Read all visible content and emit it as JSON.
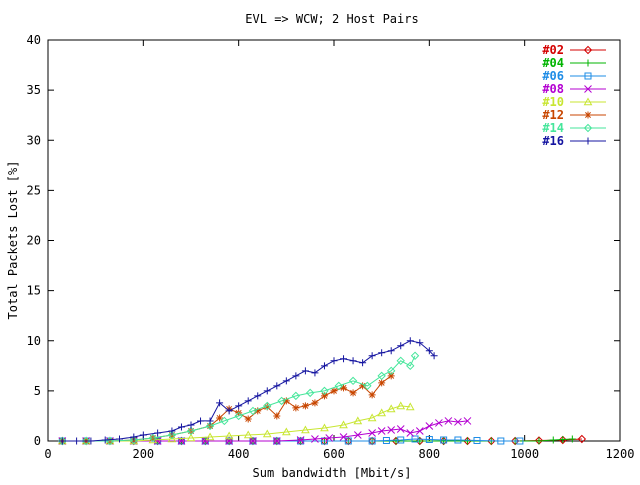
{
  "chart_data": {
    "type": "line",
    "title": "EVL => WCW; 2 Host Pairs",
    "xlabel": "Sum bandwidth [Mbit/s]",
    "ylabel": "Total Packets Lost [%]",
    "xlim": [
      0,
      1200
    ],
    "ylim": [
      0,
      40
    ],
    "xticks": [
      0,
      200,
      400,
      600,
      800,
      1000,
      1200
    ],
    "yticks": [
      0,
      5,
      10,
      15,
      20,
      25,
      30,
      35,
      40
    ],
    "grid": false,
    "legend_position": "top-right",
    "series": [
      {
        "name": "#02",
        "color": "#d40000",
        "marker": "diamond",
        "x": [
          30,
          80,
          130,
          180,
          230,
          280,
          330,
          380,
          430,
          480,
          530,
          580,
          630,
          680,
          730,
          780,
          830,
          880,
          930,
          980,
          1030,
          1080,
          1120
        ],
        "y": [
          0,
          0,
          0,
          0,
          0,
          0,
          0,
          0,
          0,
          0,
          0,
          0,
          0,
          0,
          0,
          0,
          0,
          0,
          0,
          0,
          0.05,
          0.1,
          0.2
        ]
      },
      {
        "name": "#04",
        "color": "#00b400",
        "marker": "plus",
        "x": [
          30,
          80,
          130,
          180,
          230,
          280,
          330,
          380,
          430,
          480,
          530,
          580,
          630,
          680,
          730,
          780,
          830,
          880,
          930,
          980,
          1030,
          1060,
          1080,
          1100
        ],
        "y": [
          0,
          0,
          0,
          0,
          0,
          0,
          0,
          0,
          0,
          0,
          0,
          0,
          0,
          0,
          0,
          0,
          0,
          0,
          0,
          0,
          0,
          0.1,
          0.15,
          0.2
        ]
      },
      {
        "name": "#06",
        "color": "#1e8ce6",
        "marker": "square",
        "x": [
          30,
          80,
          130,
          180,
          230,
          280,
          330,
          380,
          430,
          480,
          530,
          580,
          630,
          680,
          710,
          740,
          770,
          800,
          830,
          860,
          900,
          950,
          990
        ],
        "y": [
          0,
          0,
          0,
          0,
          0,
          0,
          0,
          0,
          0,
          0,
          0,
          0,
          0,
          0,
          0.05,
          0.1,
          0.2,
          0.15,
          0.1,
          0.1,
          0.05,
          0,
          0
        ]
      },
      {
        "name": "#08",
        "color": "#b400d2",
        "marker": "cross",
        "x": [
          30,
          80,
          130,
          180,
          230,
          280,
          330,
          380,
          430,
          480,
          530,
          560,
          590,
          620,
          650,
          680,
          700,
          720,
          740,
          760,
          780,
          800,
          820,
          840,
          860,
          880
        ],
        "y": [
          0,
          0,
          0,
          0,
          0,
          0,
          0,
          0,
          0,
          0,
          0.1,
          0.2,
          0.3,
          0.4,
          0.6,
          0.8,
          1.0,
          1.1,
          1.2,
          0.8,
          1.0,
          1.5,
          1.8,
          2.0,
          1.9,
          2.0
        ]
      },
      {
        "name": "#10",
        "color": "#c8e632",
        "marker": "triangle",
        "x": [
          30,
          80,
          130,
          180,
          220,
          260,
          300,
          340,
          380,
          420,
          460,
          500,
          540,
          580,
          620,
          650,
          680,
          700,
          720,
          740,
          760
        ],
        "y": [
          0,
          0,
          0,
          0,
          0.1,
          0.2,
          0.3,
          0.4,
          0.5,
          0.6,
          0.7,
          0.9,
          1.1,
          1.3,
          1.6,
          2.0,
          2.3,
          2.8,
          3.2,
          3.5,
          3.4
        ]
      },
      {
        "name": "#12",
        "color": "#c84600",
        "marker": "asterisk",
        "x": [
          30,
          80,
          130,
          180,
          220,
          260,
          300,
          340,
          360,
          380,
          400,
          420,
          440,
          460,
          480,
          500,
          520,
          540,
          560,
          580,
          600,
          620,
          640,
          660,
          680,
          700,
          720
        ],
        "y": [
          0,
          0,
          0,
          0.1,
          0.3,
          0.6,
          1.0,
          1.5,
          2.3,
          3.2,
          2.8,
          2.2,
          3.0,
          3.4,
          2.5,
          4.0,
          3.3,
          3.5,
          3.8,
          4.5,
          5.0,
          5.3,
          4.8,
          5.5,
          4.6,
          5.8,
          6.5
        ]
      },
      {
        "name": "#14",
        "color": "#46e69b",
        "marker": "diamond",
        "x": [
          30,
          80,
          130,
          180,
          220,
          260,
          300,
          340,
          370,
          400,
          430,
          460,
          490,
          520,
          550,
          580,
          610,
          640,
          670,
          700,
          720,
          740,
          760,
          770
        ],
        "y": [
          0,
          0,
          0,
          0.1,
          0.3,
          0.6,
          1.0,
          1.5,
          2.0,
          2.5,
          3.0,
          3.5,
          4.0,
          4.5,
          4.8,
          5.0,
          5.5,
          6.0,
          5.5,
          6.5,
          7.0,
          8.0,
          7.5,
          8.5
        ]
      },
      {
        "name": "#16",
        "color": "#1414a0",
        "marker": "plus",
        "x": [
          30,
          60,
          90,
          120,
          150,
          180,
          200,
          230,
          260,
          280,
          300,
          320,
          340,
          360,
          380,
          400,
          420,
          440,
          460,
          480,
          500,
          520,
          540,
          560,
          580,
          600,
          620,
          640,
          660,
          680,
          700,
          720,
          740,
          760,
          780,
          800,
          810
        ],
        "y": [
          0,
          0,
          0,
          0.1,
          0.2,
          0.4,
          0.6,
          0.8,
          1.0,
          1.4,
          1.6,
          2.0,
          2.0,
          3.8,
          3.0,
          3.5,
          4.0,
          4.5,
          5.0,
          5.5,
          6.0,
          6.5,
          7.0,
          6.8,
          7.5,
          8.0,
          8.2,
          8.0,
          7.8,
          8.5,
          8.8,
          9.0,
          9.5,
          10.0,
          9.8,
          9.0,
          8.5
        ]
      }
    ]
  }
}
